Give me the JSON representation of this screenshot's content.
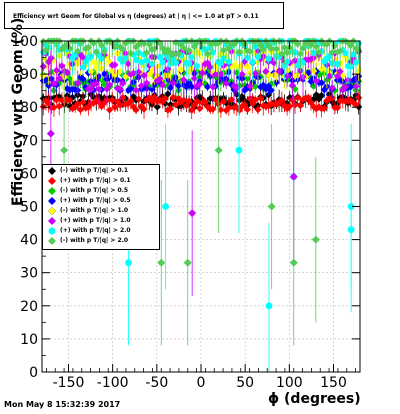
{
  "title": "Efficiency wrt Geom for Global vs η (degrees) at | η | <= 1.0 at pT > 0.11",
  "timestamp": "Mon May  8 15:32:39 2017",
  "legend_labels": [
    "(-) with p T/|q| > 0.1",
    "(+) with p T/|q| > 0.1",
    "(-) with p T/|q| > 0.5",
    "(+) with p T/|q| > 0.5",
    "(-) with p T/|q| > 1.0",
    "(+) with p T/|q| > 1.0",
    "(+) with p T/|q| > 2.0",
    "(-) with p T/|q| > 2.0"
  ],
  "chart_data": {
    "type": "scatter",
    "title": "Efficiency wrt Geom for Global vs η (degrees) at | η | <= 1.0 at pT > 0.11",
    "xlabel": "ϕ (degrees)",
    "ylabel": "Efficiency wrt Geom (%)",
    "xlim": [
      -180,
      180
    ],
    "ylim": [
      0,
      100
    ],
    "xticks": [
      -150,
      -100,
      -50,
      0,
      50,
      100,
      150
    ],
    "yticks": [
      0,
      10,
      20,
      30,
      40,
      50,
      60,
      70,
      80,
      90,
      100
    ],
    "grid": true,
    "legend_position": "left",
    "series": [
      {
        "name": "(-) with p T/|q| > 0.1",
        "color": "#000000",
        "marker": "diamond",
        "base": 82,
        "spread": 2
      },
      {
        "name": "(+) with p T/|q| > 0.1",
        "color": "#ff0000",
        "marker": "diamond",
        "base": 81,
        "spread": 2
      },
      {
        "name": "(-) with p T/|q| > 0.5",
        "color": "#00cc00",
        "marker": "diamond",
        "base": 88,
        "spread": 3
      },
      {
        "name": "(+) with p T/|q| > 0.5",
        "color": "#0000ff",
        "marker": "diamond",
        "base": 88,
        "spread": 3
      },
      {
        "name": "(-) with p T/|q| > 1.0",
        "color": "#ffff00",
        "marker": "diamond",
        "base": 93,
        "spread": 4
      },
      {
        "name": "(+) with p T/|q| > 1.0",
        "color": "#cc00ff",
        "marker": "diamond",
        "base": 91,
        "spread": 6
      },
      {
        "name": "(+) with p T/|q| > 2.0",
        "color": "#00ffff",
        "marker": "circle",
        "base": 97,
        "spread": 5
      },
      {
        "name": "(-) with p T/|q| > 2.0",
        "color": "#55cc55",
        "marker": "diamond",
        "base": 99,
        "spread": 3
      }
    ],
    "outliers": [
      {
        "series": 6,
        "x": 77,
        "y": 20
      },
      {
        "series": 6,
        "x": -82,
        "y": 33
      },
      {
        "series": 6,
        "x": 105,
        "y": 59
      },
      {
        "series": 6,
        "x": 170,
        "y": 43
      },
      {
        "series": 6,
        "x": 43,
        "y": 67
      },
      {
        "series": 5,
        "x": 105,
        "y": 59
      },
      {
        "series": 5,
        "x": -10,
        "y": 48
      },
      {
        "series": 5,
        "x": -170,
        "y": 72
      },
      {
        "series": 7,
        "x": 130,
        "y": 40
      },
      {
        "series": 7,
        "x": 105,
        "y": 33
      },
      {
        "series": 7,
        "x": -45,
        "y": 33
      },
      {
        "series": 7,
        "x": -15,
        "y": 33
      },
      {
        "series": 7,
        "x": 80,
        "y": 50
      },
      {
        "series": 7,
        "x": -155,
        "y": 67
      },
      {
        "series": 7,
        "x": 20,
        "y": 67
      },
      {
        "series": 6,
        "x": -40,
        "y": 50
      },
      {
        "series": 6,
        "x": 170,
        "y": 50
      }
    ]
  }
}
